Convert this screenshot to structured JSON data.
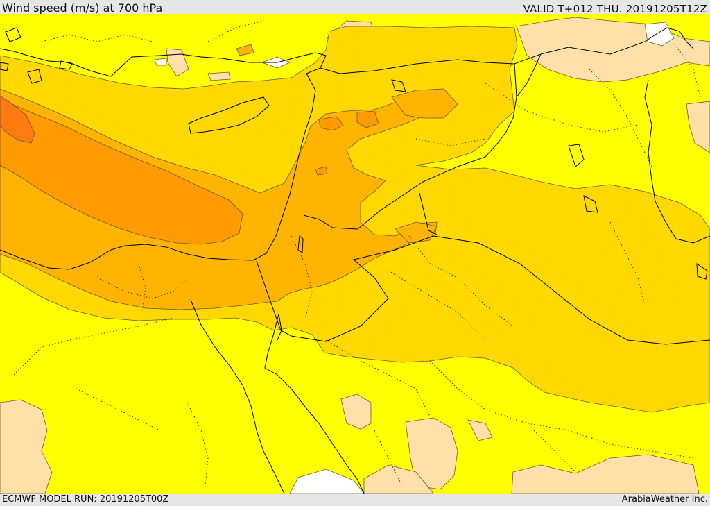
{
  "header": {
    "title": "Wind speed (m/s) at 700 hPa",
    "valid": "VALID T+012 THU. 20191205T12Z"
  },
  "footer": {
    "model_run": "ECMWF MODEL RUN: 20191205T00Z",
    "credit": "ArabiaWeather Inc."
  },
  "map": {
    "fill_colors": {
      "no_data": "#ffffff",
      "calm": "#ffe0a8",
      "light": "#ffff00",
      "moderate": "#ffd800",
      "fresh": "#ffb400",
      "strong": "#ff9a00",
      "very_strong": "#ff7a10"
    },
    "line_colors": {
      "coastline": "#000000",
      "border": "#000000",
      "region": "#333333",
      "contour": "#6b5a3a"
    }
  }
}
